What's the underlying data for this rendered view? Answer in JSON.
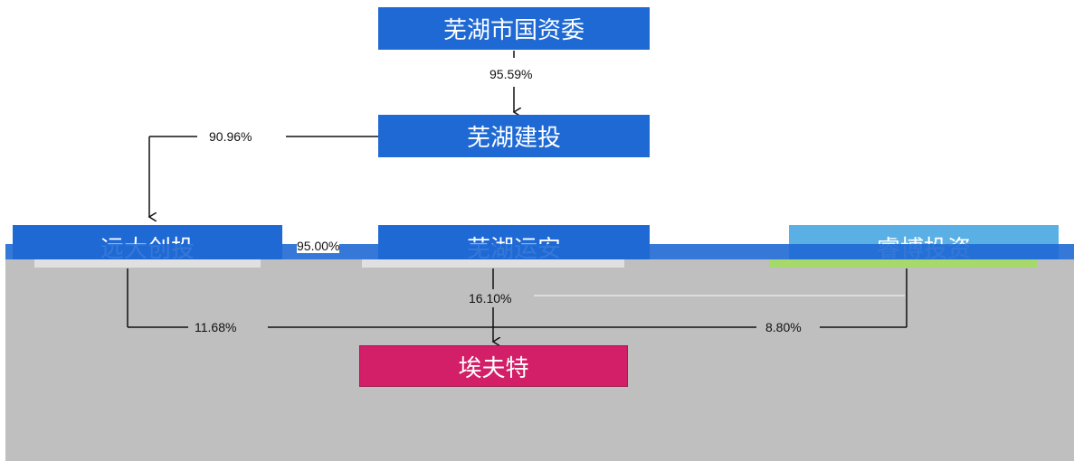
{
  "nodes": {
    "wuhu_sasac": "芜湖市国资委",
    "wuhu_construction": "芜湖建投",
    "yuanda_venture": "远大创投",
    "wuhu_yunan": "芜湖运安",
    "ruibo_investment": "睿博投资",
    "efort": "埃夫特"
  },
  "edges": {
    "sasac_to_construction": "95.59%",
    "construction_to_yuanda": "90.96%",
    "yuanda_to_yunan": "95.00%",
    "yunan_to_efort": "16.10%",
    "yuanda_to_efort": "11.68%",
    "ruibo_to_efort": "8.80%"
  },
  "colors": {
    "blue": "#1f69d4",
    "light_blue": "#5ab0e4",
    "pink": "#d21f68",
    "gray": "#bfbfbf"
  }
}
